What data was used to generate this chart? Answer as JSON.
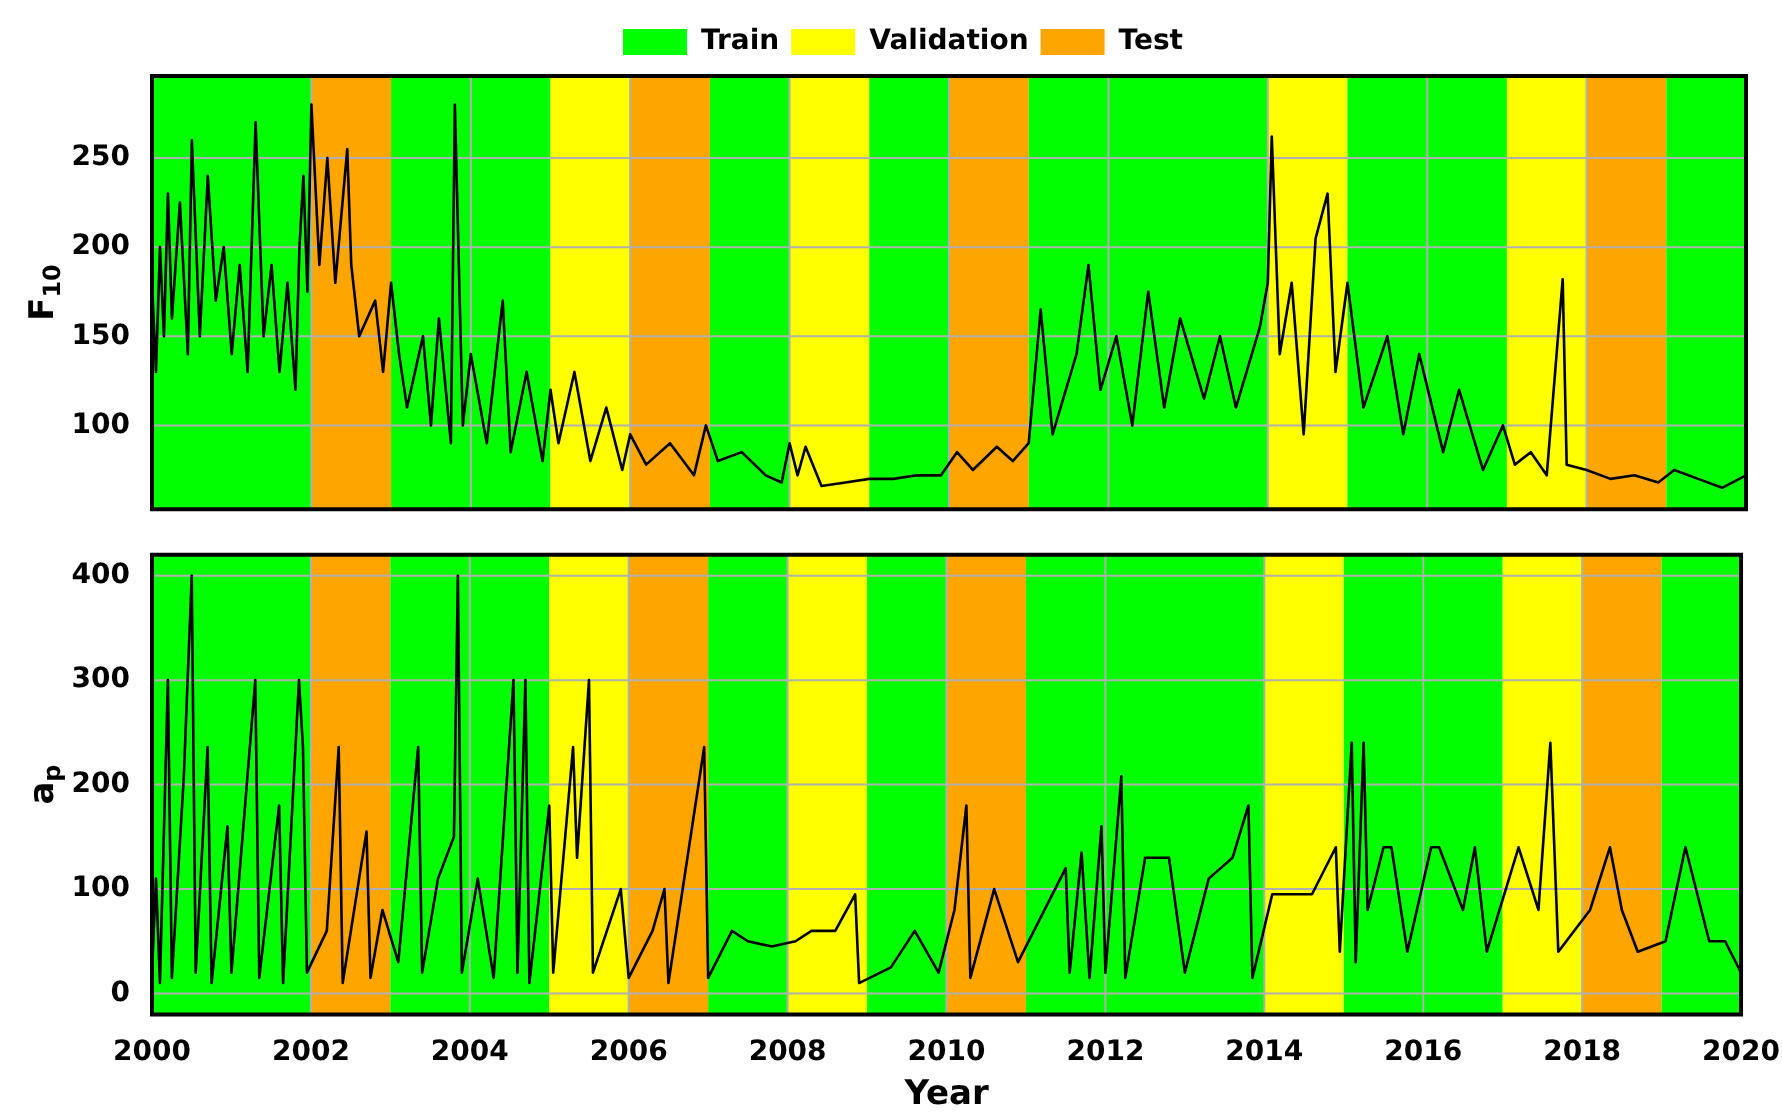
{
  "chart_data": [
    {
      "type": "line",
      "ylabel": "F$_{10}$",
      "legend": "top",
      "grid": true,
      "tick_labels": "y",
      "xlim": [
        2000,
        2020
      ],
      "xticks": [
        2000,
        2002,
        2004,
        2006,
        2008,
        2010,
        2012,
        2014,
        2016,
        2018,
        2020
      ],
      "ylim": [
        53,
        296
      ],
      "yticks": [
        100,
        150,
        200,
        250
      ],
      "bands": [
        {
          "axis": "x",
          "from": 2000,
          "to": 2002,
          "label": "Train",
          "color": "#00ff00"
        },
        {
          "axis": "x",
          "from": 2002,
          "to": 2003,
          "color": "#ffa500"
        },
        {
          "axis": "x",
          "from": 2003,
          "to": 2005,
          "color": "#00ff00"
        },
        {
          "axis": "x",
          "from": 2005,
          "to": 2006,
          "label": "Validation",
          "color": "#ffff00"
        },
        {
          "axis": "x",
          "from": 2006,
          "to": 2007,
          "label": "Test",
          "color": "#ffa500"
        },
        {
          "axis": "x",
          "from": 2007,
          "to": 2008,
          "color": "#00ff00"
        },
        {
          "axis": "x",
          "from": 2008,
          "to": 2009,
          "color": "#ffff00"
        },
        {
          "axis": "x",
          "from": 2009,
          "to": 2010,
          "color": "#00ff00"
        },
        {
          "axis": "x",
          "from": 2010,
          "to": 2011,
          "color": "#ffa500"
        },
        {
          "axis": "x",
          "from": 2011,
          "to": 2014,
          "color": "#00ff00"
        },
        {
          "axis": "x",
          "from": 2014,
          "to": 2015,
          "color": "#ffff00"
        },
        {
          "axis": "x",
          "from": 2015,
          "to": 2017,
          "color": "#00ff00"
        },
        {
          "axis": "x",
          "from": 2017,
          "to": 2018,
          "color": "#ffff00"
        },
        {
          "axis": "x",
          "from": 2018,
          "to": 2019,
          "color": "#ffa500"
        },
        {
          "axis": "x",
          "from": 2019,
          "to": 2020,
          "color": "#00ff00"
        }
      ],
      "series": [
        {
          "color": "#000000",
          "x": [
            2000.0,
            2000.05,
            2000.1,
            2000.15,
            2000.2,
            2000.25,
            2000.35,
            2000.45,
            2000.5,
            2000.6,
            2000.7,
            2000.8,
            2000.9,
            2001.0,
            2001.1,
            2001.2,
            2001.3,
            2001.4,
            2001.5,
            2001.6,
            2001.7,
            2001.8,
            2001.85,
            2001.9,
            2001.95,
            2002.0,
            2002.1,
            2002.2,
            2002.3,
            2002.45,
            2002.5,
            2002.6,
            2002.8,
            2002.9,
            2003.0,
            2003.1,
            2003.2,
            2003.4,
            2003.5,
            2003.6,
            2003.75,
            2003.8,
            2003.9,
            2004.0,
            2004.2,
            2004.4,
            2004.5,
            2004.7,
            2004.9,
            2005.0,
            2005.1,
            2005.3,
            2005.5,
            2005.7,
            2005.9,
            2006.0,
            2006.2,
            2006.5,
            2006.8,
            2006.95,
            2007.1,
            2007.4,
            2007.7,
            2007.9,
            2008.0,
            2008.1,
            2008.2,
            2008.4,
            2008.7,
            2009.0,
            2009.3,
            2009.6,
            2009.9,
            2010.1,
            2010.3,
            2010.6,
            2010.8,
            2011.0,
            2011.05,
            2011.15,
            2011.3,
            2011.6,
            2011.75,
            2011.9,
            2012.1,
            2012.3,
            2012.5,
            2012.7,
            2012.9,
            2013.2,
            2013.4,
            2013.6,
            2013.9,
            2014.0,
            2014.05,
            2014.15,
            2014.3,
            2014.45,
            2014.6,
            2014.75,
            2014.85,
            2015.0,
            2015.2,
            2015.5,
            2015.7,
            2015.9,
            2016.2,
            2016.4,
            2016.7,
            2016.95,
            2017.1,
            2017.3,
            2017.5,
            2017.7,
            2017.75,
            2018.0,
            2018.3,
            2018.6,
            2018.9,
            2019.1,
            2019.4,
            2019.7,
            2020.0
          ],
          "values": [
            180,
            130,
            200,
            150,
            230,
            160,
            225,
            140,
            260,
            150,
            240,
            170,
            200,
            140,
            190,
            130,
            270,
            150,
            190,
            130,
            180,
            120,
            200,
            240,
            175,
            280,
            190,
            250,
            180,
            255,
            190,
            150,
            170,
            130,
            180,
            140,
            110,
            150,
            100,
            160,
            90,
            280,
            100,
            140,
            90,
            170,
            85,
            130,
            80,
            120,
            90,
            130,
            80,
            110,
            75,
            95,
            78,
            90,
            72,
            100,
            80,
            85,
            72,
            68,
            90,
            72,
            88,
            66,
            68,
            70,
            70,
            72,
            72,
            85,
            75,
            88,
            80,
            90,
            115,
            165,
            95,
            140,
            190,
            120,
            150,
            100,
            175,
            110,
            160,
            115,
            150,
            110,
            155,
            180,
            262,
            140,
            180,
            95,
            205,
            230,
            130,
            180,
            110,
            150,
            95,
            140,
            85,
            120,
            75,
            100,
            78,
            85,
            72,
            182,
            78,
            75,
            70,
            72,
            68,
            75,
            70,
            65,
            72
          ]
        }
      ]
    },
    {
      "type": "line",
      "xlabel": "Year",
      "ylabel": "a$_{p}$",
      "grid": true,
      "xlim": [
        2000,
        2020
      ],
      "xticks": [
        2000,
        2002,
        2004,
        2006,
        2008,
        2010,
        2012,
        2014,
        2016,
        2018,
        2020
      ],
      "ylim": [
        -20,
        420
      ],
      "yticks": [
        0,
        100,
        200,
        300,
        400
      ],
      "bands": [
        {
          "axis": "x",
          "from": 2000,
          "to": 2002,
          "color": "#00ff00"
        },
        {
          "axis": "x",
          "from": 2002,
          "to": 2003,
          "color": "#ffa500"
        },
        {
          "axis": "x",
          "from": 2003,
          "to": 2005,
          "color": "#00ff00"
        },
        {
          "axis": "x",
          "from": 2005,
          "to": 2006,
          "color": "#ffff00"
        },
        {
          "axis": "x",
          "from": 2006,
          "to": 2007,
          "color": "#ffa500"
        },
        {
          "axis": "x",
          "from": 2007,
          "to": 2008,
          "color": "#00ff00"
        },
        {
          "axis": "x",
          "from": 2008,
          "to": 2009,
          "color": "#ffff00"
        },
        {
          "axis": "x",
          "from": 2009,
          "to": 2010,
          "color": "#00ff00"
        },
        {
          "axis": "x",
          "from": 2010,
          "to": 2011,
          "color": "#ffa500"
        },
        {
          "axis": "x",
          "from": 2011,
          "to": 2014,
          "color": "#00ff00"
        },
        {
          "axis": "x",
          "from": 2014,
          "to": 2015,
          "color": "#ffff00"
        },
        {
          "axis": "x",
          "from": 2015,
          "to": 2017,
          "color": "#00ff00"
        },
        {
          "axis": "x",
          "from": 2017,
          "to": 2018,
          "color": "#ffff00"
        },
        {
          "axis": "x",
          "from": 2018,
          "to": 2019,
          "color": "#ffa500"
        },
        {
          "axis": "x",
          "from": 2019,
          "to": 2020,
          "color": "#00ff00"
        }
      ],
      "series": [
        {
          "color": "#000000",
          "x": [
            2000.0,
            2000.05,
            2000.1,
            2000.2,
            2000.25,
            2000.4,
            2000.5,
            2000.55,
            2000.7,
            2000.75,
            2000.95,
            2001.0,
            2001.3,
            2001.35,
            2001.6,
            2001.65,
            2001.85,
            2001.9,
            2001.95,
            2002.2,
            2002.35,
            2002.4,
            2002.7,
            2002.75,
            2002.9,
            2003.1,
            2003.35,
            2003.4,
            2003.6,
            2003.8,
            2003.85,
            2003.9,
            2004.1,
            2004.3,
            2004.55,
            2004.6,
            2004.7,
            2004.75,
            2005.0,
            2005.05,
            2005.3,
            2005.35,
            2005.5,
            2005.55,
            2005.9,
            2006.0,
            2006.3,
            2006.45,
            2006.5,
            2006.95,
            2007.0,
            2007.3,
            2007.5,
            2007.8,
            2008.1,
            2008.3,
            2008.6,
            2008.85,
            2008.9,
            2009.3,
            2009.6,
            2009.9,
            2010.1,
            2010.25,
            2010.3,
            2010.6,
            2010.9,
            2011.1,
            2011.5,
            2011.55,
            2011.7,
            2011.8,
            2011.95,
            2012.0,
            2012.2,
            2012.25,
            2012.5,
            2012.8,
            2013.0,
            2013.3,
            2013.6,
            2013.8,
            2013.85,
            2014.1,
            2014.3,
            2014.6,
            2014.9,
            2014.95,
            2015.1,
            2015.15,
            2015.25,
            2015.3,
            2015.5,
            2015.6,
            2015.8,
            2016.1,
            2016.2,
            2016.5,
            2016.65,
            2016.8,
            2017.2,
            2017.45,
            2017.6,
            2017.65,
            2017.7,
            2018.1,
            2018.35,
            2018.5,
            2018.7,
            2019.05,
            2019.3,
            2019.6,
            2019.8,
            2020.0
          ],
          "values": [
            20,
            110,
            10,
            300,
            15,
            207,
            400,
            20,
            236,
            10,
            160,
            20,
            300,
            15,
            180,
            10,
            300,
            236,
            20,
            60,
            236,
            10,
            155,
            15,
            80,
            30,
            236,
            20,
            110,
            150,
            400,
            20,
            110,
            15,
            300,
            20,
            300,
            10,
            180,
            20,
            236,
            130,
            300,
            20,
            100,
            15,
            60,
            100,
            10,
            236,
            15,
            60,
            50,
            45,
            50,
            60,
            60,
            95,
            10,
            25,
            60,
            20,
            80,
            180,
            15,
            100,
            30,
            60,
            120,
            20,
            135,
            15,
            160,
            20,
            208,
            15,
            130,
            130,
            20,
            110,
            130,
            180,
            15,
            95,
            95,
            95,
            140,
            40,
            240,
            30,
            240,
            80,
            140,
            140,
            40,
            140,
            140,
            80,
            140,
            40,
            140,
            80,
            240,
            140,
            40,
            80,
            140,
            80,
            40,
            50,
            140,
            50,
            50,
            20
          ]
        }
      ]
    }
  ]
}
